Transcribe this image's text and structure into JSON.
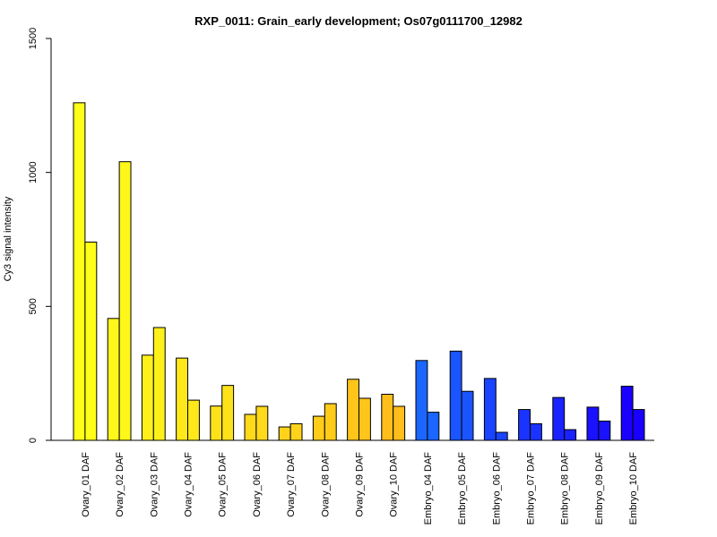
{
  "chart_data": {
    "type": "bar",
    "title": "RXP_0011: Grain_early development; Os07g0111700_12982",
    "xlabel": "",
    "ylabel": "Cy3 signal intensity",
    "ylim": [
      0,
      1500
    ],
    "yticks": [
      "0",
      "500",
      "1000",
      "1500"
    ],
    "grid": false,
    "categories": [
      "Ovary_01 DAF",
      "Ovary_02 DAF",
      "Ovary_03 DAF",
      "Ovary_04 DAF",
      "Ovary_05 DAF",
      "Ovary_06 DAF",
      "Ovary_07 DAF",
      "Ovary_08 DAF",
      "Ovary_09 DAF",
      "Ovary_10 DAF",
      "Embryo_04 DAF",
      "Embryo_05 DAF",
      "Embryo_06 DAF",
      "Embryo_07 DAF",
      "Embryo_08 DAF",
      "Embryo_09 DAF",
      "Embryo_10 DAF"
    ],
    "colors": [
      "#FFFF1A",
      "#FFF71A",
      "#FFF01A",
      "#FFE81A",
      "#FFE11A",
      "#FFDA1A",
      "#FFD31A",
      "#FFCC1A",
      "#FFC51A",
      "#FFBE1A",
      "#1A66FF",
      "#1A55FF",
      "#1A44FF",
      "#1A33FF",
      "#1A22FF",
      "#1A11FF",
      "#1A00FF"
    ],
    "series": [
      {
        "values": [
          1260,
          455,
          318,
          307,
          128,
          97,
          50,
          90,
          228,
          172,
          298,
          333,
          231,
          115,
          160,
          124,
          202
        ]
      },
      {
        "values": [
          740,
          1040,
          421,
          150,
          205,
          127,
          62,
          137,
          157,
          127,
          105,
          183,
          30,
          62,
          40,
          72,
          115
        ]
      }
    ]
  }
}
